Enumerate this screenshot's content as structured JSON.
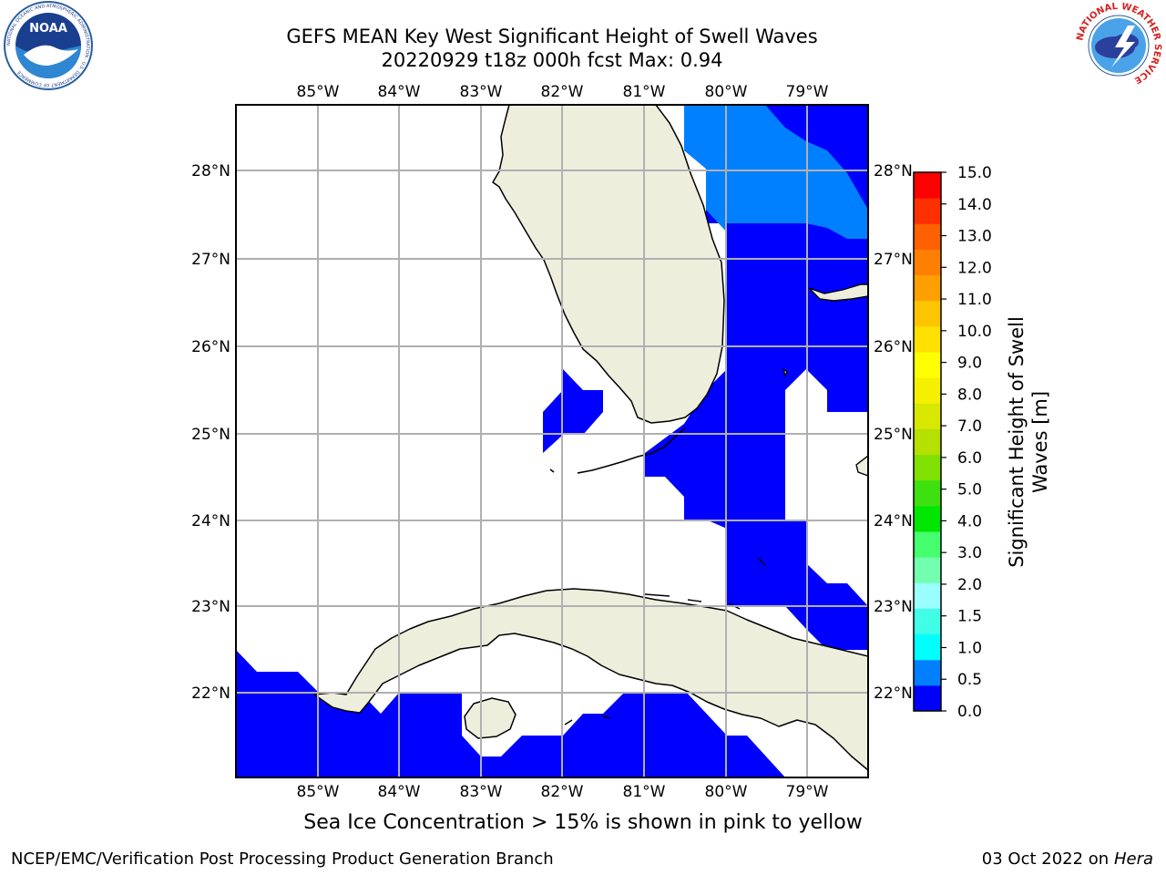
{
  "title": {
    "line1": "GEFS MEAN Key West Significant Height of Swell Waves",
    "line2": "20220929 t18z 000h fcst   Max: 0.94"
  },
  "map": {
    "lon_labels": [
      "85°W",
      "84°W",
      "83°W",
      "82°W",
      "81°W",
      "80°W",
      "79°W"
    ],
    "lat_labels": [
      "28°N",
      "27°N",
      "26°N",
      "25°N",
      "24°N",
      "23°N",
      "22°N"
    ],
    "land_color": "#eeeedd",
    "grid_color": "#b0b0b0"
  },
  "colorbar": {
    "label_line1": "Significant Height of Swell",
    "label_line2": "Waves [m]",
    "ticks": [
      "0.0",
      "0.5",
      "1.0",
      "1.5",
      "2.0",
      "2.5",
      "3.0",
      "3.5",
      "4.0",
      "4.5",
      "5.0",
      "5.5",
      "6.0",
      "6.5",
      "7.0",
      "7.5",
      "8.0",
      "8.5",
      "9.0",
      "9.5",
      "10.0",
      "10.5",
      "11.0",
      "11.5",
      "12.0",
      "12.5",
      "13.0",
      "13.5",
      "14.0",
      "14.5",
      "15.0"
    ],
    "tick_labels": [
      "0.0",
      "0.5",
      "1.0",
      "1.5",
      "2.0",
      "3.0",
      "4.0",
      "5.0",
      "6.0",
      "7.0",
      "8.0",
      "9.0",
      "10.0",
      "11.0",
      "12.0",
      "13.0",
      "14.0",
      "15.0"
    ],
    "colors": [
      "#0000ff",
      "#0080ff",
      "#00ffff",
      "#40ffe6",
      "#9cffff",
      "#73ffb0",
      "#45ff6e",
      "#00e600",
      "#3fe010",
      "#80e000",
      "#b5e000",
      "#d8e800",
      "#f4f000",
      "#ffff00",
      "#ffe000",
      "#ffc400",
      "#ffa000",
      "#ff8000",
      "#ff6000",
      "#ff3000",
      "#ff0000"
    ]
  },
  "logos": {
    "noaa_text": "NOAA",
    "noaa_ring": "NATIONAL OCEANIC AND ATMOSPHERIC ADMINISTRATION · U.S. DEPARTMENT OF COMMERCE",
    "nws_ring": "NATIONAL WEATHER SERVICE"
  },
  "footnote": "Sea Ice Concentration > 15% is shown in pink to yellow",
  "credit_left": "NCEP/EMC/Verification Post Processing Product Generation Branch",
  "credit_right_date": "03 Oct 2022 on ",
  "credit_right_host": "Hera"
}
